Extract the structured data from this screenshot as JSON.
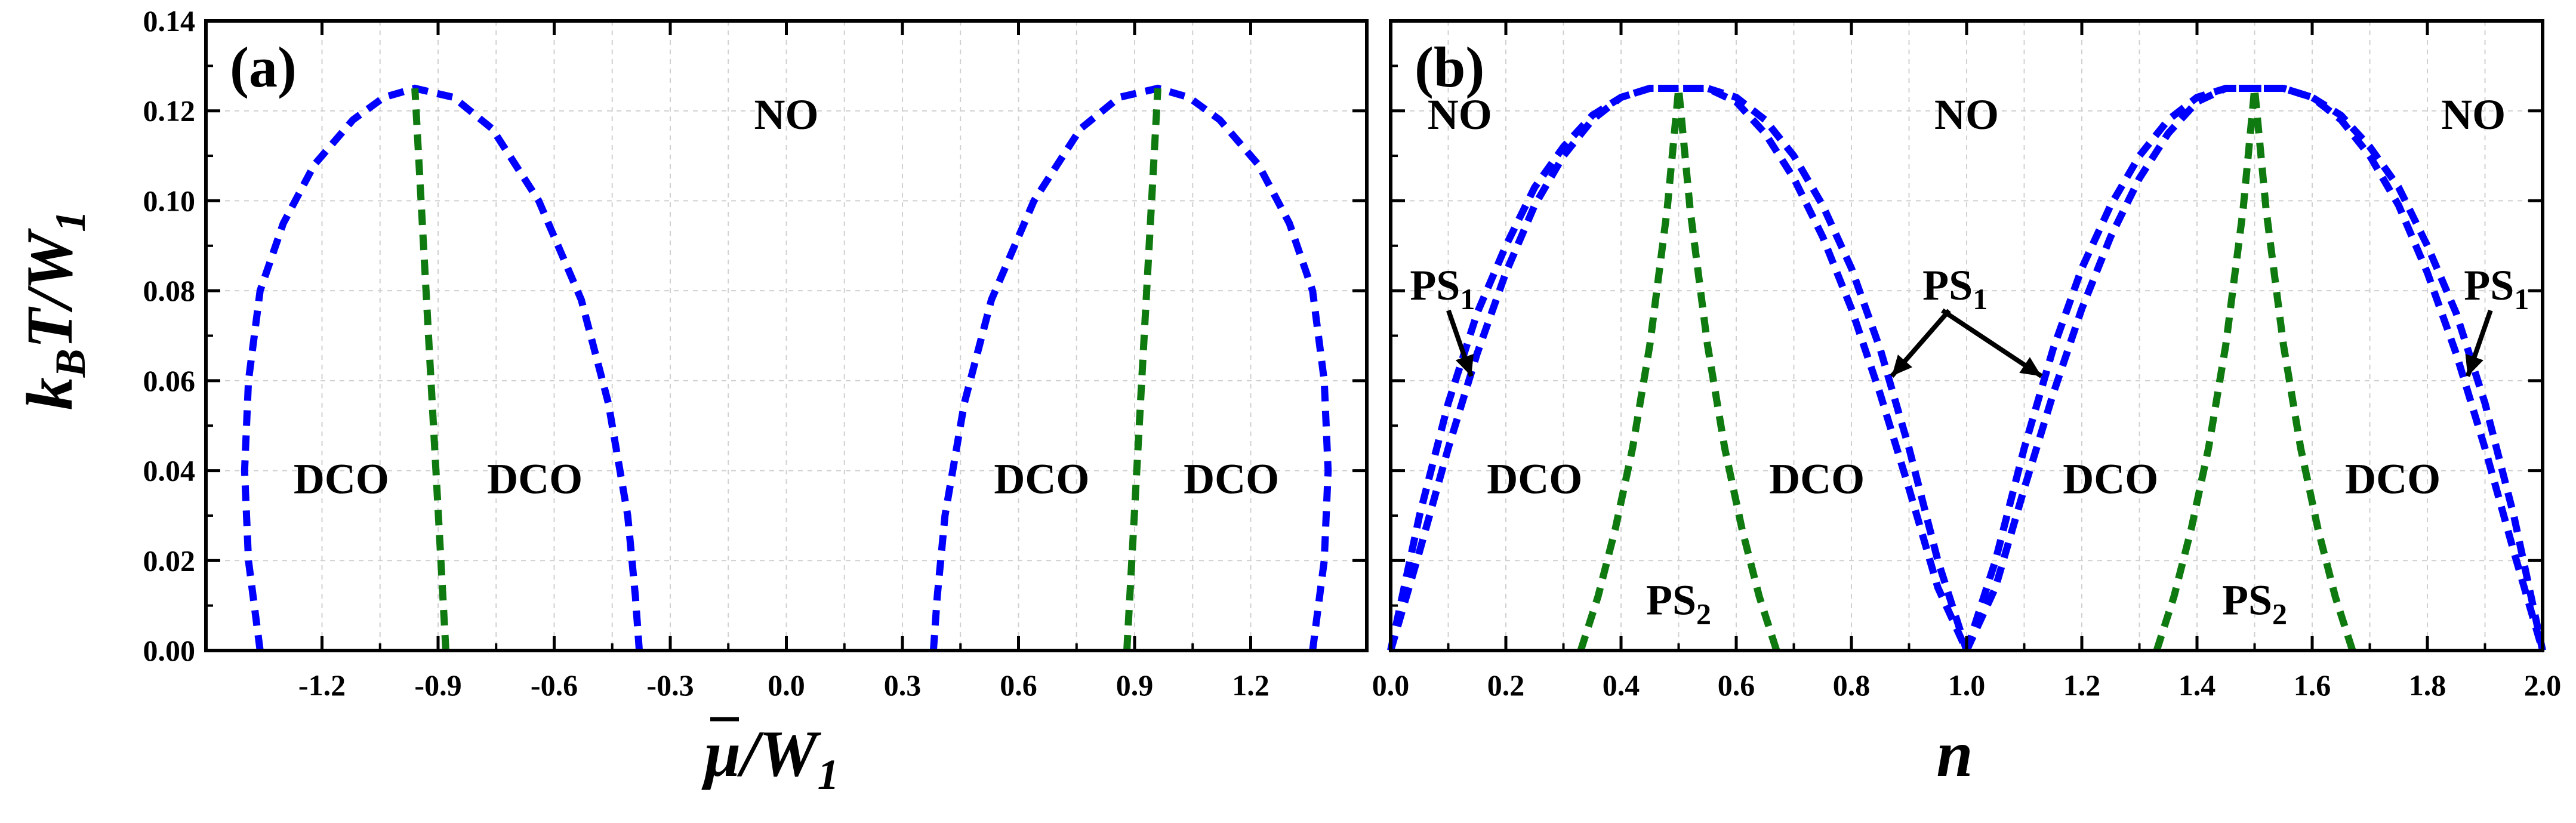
{
  "chart_data": [
    {
      "panel": "(a)",
      "type": "line",
      "xlabel": "μ̄ /W1",
      "ylabel": "kBT/W1",
      "xlim": [
        -1.5,
        1.5
      ],
      "ylim": [
        0,
        0.14
      ],
      "x_ticks": [
        -1.2,
        -0.9,
        -0.6,
        -0.3,
        0.0,
        0.3,
        0.6,
        0.9,
        1.2
      ],
      "x_tick_labels": [
        "-1.2",
        "-0.9",
        "-0.6",
        "-0.3",
        "0.0",
        "0.3",
        "0.6",
        "0.9",
        "1.2"
      ],
      "y_ticks": [
        0,
        0.02,
        0.04,
        0.06,
        0.08,
        0.1,
        0.12,
        0.14
      ],
      "y_tick_labels": [
        "0.00",
        "0.02",
        "0.04",
        "0.06",
        "0.08",
        "0.10",
        "0.12",
        "0.14"
      ],
      "series": [
        {
          "name": "boundary-left",
          "color": "#0000ff",
          "x": [
            -1.36,
            -1.39,
            -1.4,
            -1.39,
            -1.36,
            -1.3,
            -1.22,
            -1.12,
            -1.04,
            -0.96,
            -0.86,
            -0.76,
            -0.64,
            -0.53,
            -0.46,
            -0.41,
            -0.39,
            -0.38
          ],
          "y": [
            0.0,
            0.02,
            0.04,
            0.06,
            0.08,
            0.095,
            0.108,
            0.118,
            0.123,
            0.125,
            0.123,
            0.116,
            0.1,
            0.078,
            0.055,
            0.03,
            0.012,
            0.0
          ]
        },
        {
          "name": "boundary-right",
          "color": "#0000ff",
          "x": [
            0.38,
            0.39,
            0.41,
            0.46,
            0.53,
            0.64,
            0.76,
            0.86,
            0.96,
            1.04,
            1.12,
            1.22,
            1.3,
            1.36,
            1.39,
            1.4,
            1.39,
            1.36
          ],
          "y": [
            0.0,
            0.012,
            0.03,
            0.055,
            0.078,
            0.1,
            0.116,
            0.123,
            0.125,
            0.123,
            0.118,
            0.108,
            0.095,
            0.08,
            0.06,
            0.04,
            0.02,
            0.0
          ]
        },
        {
          "name": "dco-split-left",
          "color": "#0f7a0f",
          "x": [
            -0.88,
            -0.96
          ],
          "y": [
            0.0,
            0.125
          ]
        },
        {
          "name": "dco-split-right",
          "color": "#0f7a0f",
          "x": [
            0.88,
            0.96
          ],
          "y": [
            0.0,
            0.125
          ]
        }
      ],
      "region_labels": [
        {
          "text": "NO",
          "x": 0.0,
          "y": 0.116
        },
        {
          "text": "DCO",
          "x": -1.15,
          "y": 0.035
        },
        {
          "text": "DCO",
          "x": -0.65,
          "y": 0.035
        },
        {
          "text": "DCO",
          "x": 0.66,
          "y": 0.035
        },
        {
          "text": "DCO",
          "x": 1.15,
          "y": 0.035
        }
      ]
    },
    {
      "panel": "(b)",
      "type": "line",
      "xlabel": "n",
      "ylabel": "kBT/W1",
      "xlim": [
        0.0,
        2.0
      ],
      "ylim": [
        0,
        0.14
      ],
      "x_ticks": [
        0.0,
        0.2,
        0.4,
        0.6,
        0.8,
        1.0,
        1.2,
        1.4,
        1.6,
        1.8,
        2.0
      ],
      "x_tick_labels": [
        "0.0",
        "0.2",
        "0.4",
        "0.6",
        "0.8",
        "1.0",
        "1.2",
        "1.4",
        "1.6",
        "1.8",
        "2.0"
      ],
      "y_ticks": [
        0,
        0.02,
        0.04,
        0.06,
        0.08,
        0.1,
        0.12,
        0.14
      ],
      "series": [
        {
          "name": "ps1-boundary-outer",
          "color": "#0000ff",
          "x": [
            0.0,
            0.05,
            0.1,
            0.15,
            0.2,
            0.25,
            0.3,
            0.35,
            0.4,
            0.45,
            0.5,
            0.55,
            0.6,
            0.65,
            0.7,
            0.75,
            0.8,
            0.85,
            0.9,
            0.95,
            1.0
          ],
          "y": [
            0.0,
            0.03,
            0.055,
            0.075,
            0.09,
            0.103,
            0.112,
            0.119,
            0.123,
            0.125,
            0.125,
            0.125,
            0.123,
            0.118,
            0.11,
            0.099,
            0.085,
            0.067,
            0.045,
            0.02,
            0.0
          ]
        },
        {
          "name": "ps1-boundary-inner",
          "color": "#0000ff",
          "x": [
            0.0,
            0.05,
            0.1,
            0.15,
            0.2,
            0.25,
            0.3,
            0.35,
            0.4,
            0.45,
            0.5,
            0.55,
            0.6,
            0.65,
            0.7,
            0.75,
            0.8,
            0.85,
            0.9,
            0.95,
            1.0
          ],
          "y": [
            0.0,
            0.022,
            0.045,
            0.066,
            0.084,
            0.099,
            0.11,
            0.118,
            0.123,
            0.125,
            0.125,
            0.125,
            0.122,
            0.115,
            0.105,
            0.092,
            0.076,
            0.057,
            0.036,
            0.014,
            0.0
          ]
        },
        {
          "name": "ps1-boundary-outer-2",
          "color": "#0000ff",
          "x": [
            1.0,
            1.05,
            1.1,
            1.15,
            1.2,
            1.25,
            1.3,
            1.35,
            1.4,
            1.45,
            1.5,
            1.55,
            1.6,
            1.65,
            1.7,
            1.75,
            1.8,
            1.85,
            1.9,
            1.95,
            2.0
          ],
          "y": [
            0.0,
            0.02,
            0.045,
            0.067,
            0.085,
            0.099,
            0.11,
            0.118,
            0.123,
            0.125,
            0.125,
            0.125,
            0.123,
            0.119,
            0.112,
            0.103,
            0.09,
            0.075,
            0.055,
            0.03,
            0.0
          ]
        },
        {
          "name": "ps1-boundary-inner-2",
          "color": "#0000ff",
          "x": [
            1.0,
            1.05,
            1.1,
            1.15,
            1.2,
            1.25,
            1.3,
            1.35,
            1.4,
            1.45,
            1.5,
            1.55,
            1.6,
            1.65,
            1.7,
            1.75,
            1.8,
            1.85,
            1.9,
            1.95,
            2.0
          ],
          "y": [
            0.0,
            0.014,
            0.036,
            0.057,
            0.076,
            0.092,
            0.105,
            0.115,
            0.122,
            0.125,
            0.125,
            0.125,
            0.123,
            0.118,
            0.11,
            0.099,
            0.084,
            0.066,
            0.045,
            0.022,
            0.0
          ]
        },
        {
          "name": "ps2-boundary-1",
          "color": "#0f7a0f",
          "x": [
            0.33,
            0.36,
            0.39,
            0.42,
            0.45,
            0.48,
            0.5,
            0.52,
            0.55,
            0.58,
            0.61,
            0.64,
            0.67
          ],
          "y": [
            0.0,
            0.012,
            0.027,
            0.045,
            0.068,
            0.098,
            0.125,
            0.098,
            0.068,
            0.045,
            0.027,
            0.012,
            0.0
          ]
        },
        {
          "name": "ps2-boundary-2",
          "color": "#0f7a0f",
          "x": [
            1.33,
            1.36,
            1.39,
            1.42,
            1.45,
            1.48,
            1.5,
            1.52,
            1.55,
            1.58,
            1.61,
            1.64,
            1.67
          ],
          "y": [
            0.0,
            0.012,
            0.027,
            0.045,
            0.068,
            0.098,
            0.125,
            0.098,
            0.068,
            0.045,
            0.027,
            0.012,
            0.0
          ]
        }
      ],
      "region_labels": [
        {
          "text": "NO",
          "x": 0.12,
          "y": 0.116
        },
        {
          "text": "NO",
          "x": 1.0,
          "y": 0.116
        },
        {
          "text": "NO",
          "x": 1.88,
          "y": 0.116
        },
        {
          "text": "DCO",
          "x": 0.25,
          "y": 0.035
        },
        {
          "text": "DCO",
          "x": 0.74,
          "y": 0.035
        },
        {
          "text": "DCO",
          "x": 1.25,
          "y": 0.035
        },
        {
          "text": "DCO",
          "x": 1.74,
          "y": 0.035
        }
      ],
      "annotations": [
        {
          "text": "PS",
          "sub": "1",
          "x": 0.09,
          "y": 0.078,
          "arrow_to": [
            0.14,
            0.061
          ]
        },
        {
          "text": "PS",
          "sub": "1",
          "x": 0.98,
          "y": 0.078,
          "arrow_to": [
            0.87,
            0.061
          ]
        },
        {
          "text": "PS",
          "sub": "1",
          "x": 1.02,
          "y": 0.078,
          "arrow_to": [
            1.13,
            0.061
          ],
          "label_hidden": true
        },
        {
          "text": "PS",
          "sub": "1",
          "x": 1.92,
          "y": 0.078,
          "arrow_to": [
            1.87,
            0.061
          ]
        },
        {
          "text": "PS",
          "sub": "2",
          "x": 0.5,
          "y": 0.008
        },
        {
          "text": "PS",
          "sub": "2",
          "x": 1.5,
          "y": 0.008
        }
      ]
    }
  ],
  "labels": {
    "panel_a": "(a)",
    "panel_b": "(b)",
    "y_axis": {
      "k": "k",
      "B": "B",
      "T": "T/W",
      "one": "1"
    },
    "x_axis_a": {
      "mu": "μ",
      "rest": "/W",
      "one": "1"
    },
    "x_axis_b": "n"
  }
}
